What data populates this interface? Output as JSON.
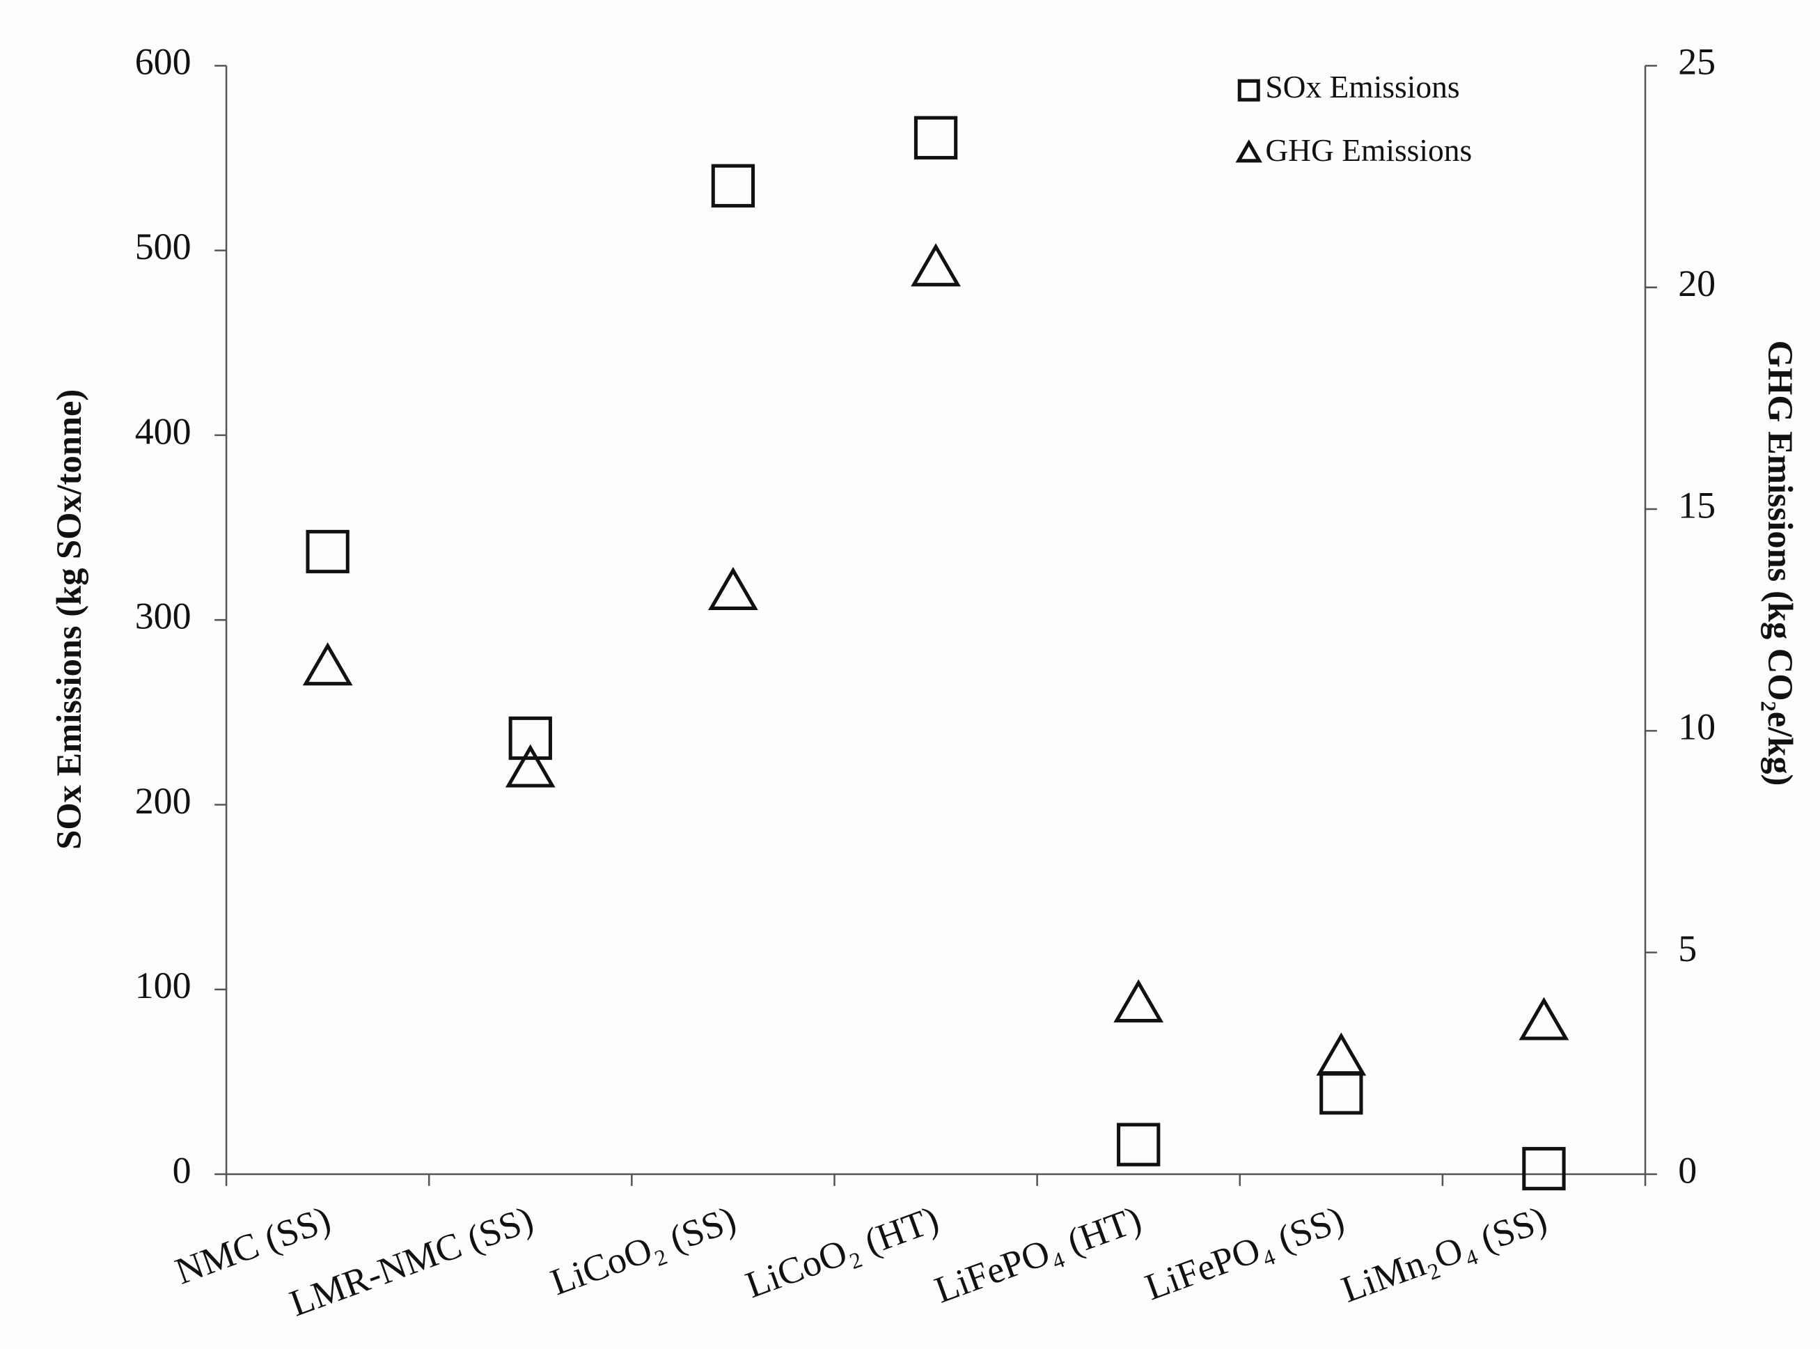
{
  "chart_data": {
    "type": "scatter",
    "categories": [
      "NMC (SS)",
      "LMR-NMC (SS)",
      "LiCoO₂ (SS)",
      "LiCoO₂ (HT)",
      "LiFePO₄ (HT)",
      "LiFePO₄ (SS)",
      "LiMn₂O₄ (SS)"
    ],
    "y_label": "SOx Emissions (kg SOx/tonne)",
    "y2_label": "GHG Emissions (kg CO₂e/kg)",
    "ylim": [
      0,
      600
    ],
    "yticks": [
      0,
      100,
      200,
      300,
      400,
      500,
      600
    ],
    "y2lim": [
      0,
      25
    ],
    "y2ticks": [
      0,
      5,
      10,
      15,
      20,
      25
    ],
    "legend": "upper right",
    "series": [
      {
        "name": "SOx Emissions",
        "color": "#111111",
        "marker": "square",
        "values": [
          337,
          236,
          535,
          561,
          16,
          44,
          3
        ]
      },
      {
        "name": "GHG Emissions",
        "color": "#111111",
        "marker": "triangle",
        "axis": "y2",
        "values": [
          11.4,
          9.1,
          13.1,
          20.4,
          3.8,
          2.6,
          3.4
        ]
      }
    ]
  }
}
